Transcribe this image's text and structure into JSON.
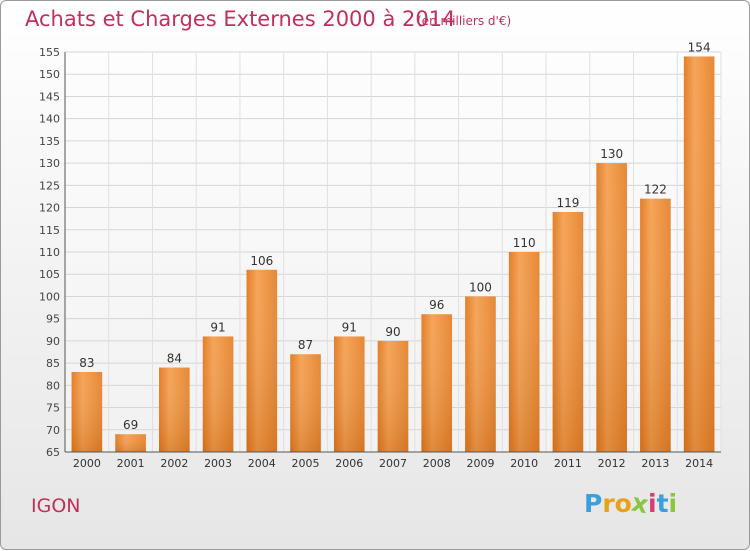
{
  "header": {
    "title": "Achats et Charges Externes 2000 à 2014",
    "subtitle": "(en milliers d'€)"
  },
  "footer": {
    "place": "IGON",
    "brand_letters": [
      "P",
      "r",
      "o",
      "x",
      "i",
      "t",
      "i"
    ],
    "brand_colors": [
      "#3aa0dc",
      "#e8a21a",
      "#e8a21a",
      "#8cc63f",
      "#d93a7a",
      "#3aa0dc",
      "#8cc63f"
    ]
  },
  "chart_data": {
    "type": "bar",
    "title": "Achats et Charges Externes 2000 à 2014",
    "subtitle": "(en milliers d'€)",
    "xlabel": "",
    "ylabel": "",
    "categories": [
      "2000",
      "2001",
      "2002",
      "2003",
      "2004",
      "2005",
      "2006",
      "2007",
      "2008",
      "2009",
      "2010",
      "2011",
      "2012",
      "2013",
      "2014"
    ],
    "values": [
      83,
      69,
      84,
      91,
      106,
      87,
      91,
      90,
      96,
      100,
      110,
      119,
      130,
      122,
      154
    ],
    "ylim": [
      65,
      155
    ],
    "yticks": [
      65,
      70,
      75,
      80,
      85,
      90,
      95,
      100,
      105,
      110,
      115,
      120,
      125,
      130,
      135,
      140,
      145,
      150,
      155
    ],
    "grid": true,
    "bar_color": "#f0963c"
  }
}
